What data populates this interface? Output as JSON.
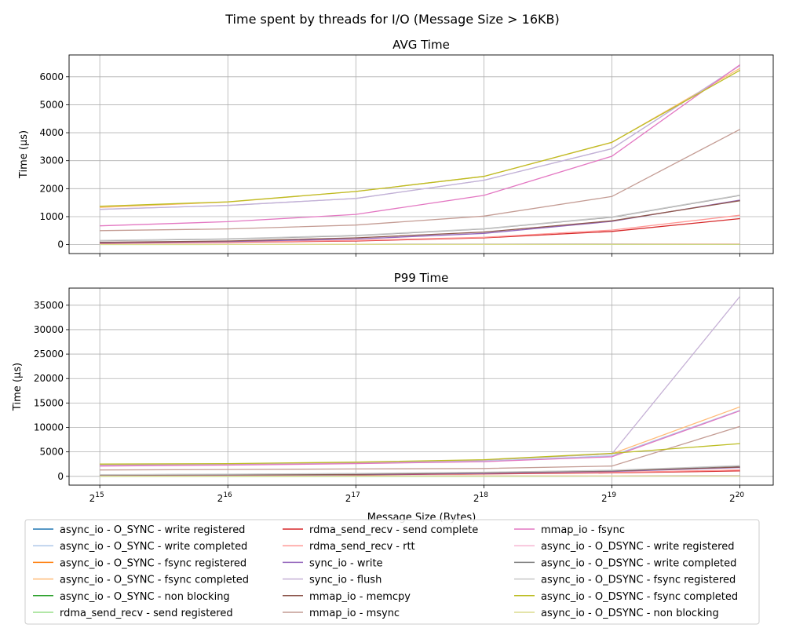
{
  "suptitle": "Time spent by threads for I/O (Message Size > 16KB)",
  "xlabel": "Message Size (Bytes)",
  "x_ticks": [
    "15",
    "16",
    "17",
    "18",
    "19",
    "20"
  ],
  "legend_title": "",
  "chart_data": [
    {
      "type": "line",
      "title": "AVG Time",
      "ylabel": "Time (µs)",
      "x": [
        32768,
        65536,
        131072,
        262144,
        524288,
        1048576
      ],
      "xscale": "log2",
      "ylim": [
        -320,
        6780
      ],
      "yticks": [
        0,
        1000,
        2000,
        3000,
        4000,
        5000,
        6000
      ],
      "grid": true,
      "series": [
        {
          "name": "async_io - O_SYNC - write registered",
          "color": "#1f77b4",
          "values": [
            10,
            12,
            15,
            18,
            22,
            28
          ]
        },
        {
          "name": "async_io - O_SYNC - write completed",
          "color": "#aec7e8",
          "values": [
            1260,
            1400,
            1650,
            2300,
            3430,
            6400
          ]
        },
        {
          "name": "async_io - O_SYNC - fsync registered",
          "color": "#ff7f0e",
          "values": [
            8,
            9,
            10,
            12,
            14,
            18
          ]
        },
        {
          "name": "async_io - O_SYNC - fsync completed",
          "color": "#ffbb78",
          "values": [
            1330,
            1520,
            1900,
            2440,
            3650,
            6300
          ]
        },
        {
          "name": "async_io - O_SYNC - non blocking",
          "color": "#2ca02c",
          "values": [
            5,
            6,
            7,
            8,
            10,
            12
          ]
        },
        {
          "name": "rdma_send_recv - send registered",
          "color": "#98df8a",
          "values": [
            4,
            5,
            6,
            8,
            12,
            20
          ]
        },
        {
          "name": "rdma_send_recv - send complete",
          "color": "#d62728",
          "values": [
            50,
            80,
            130,
            240,
            470,
            930
          ]
        },
        {
          "name": "rdma_send_recv - rtt",
          "color": "#ff9896",
          "values": [
            60,
            90,
            150,
            260,
            520,
            1050
          ]
        },
        {
          "name": "sync_io - write",
          "color": "#9467bd",
          "values": [
            60,
            110,
            200,
            400,
            830,
            1590
          ]
        },
        {
          "name": "sync_io - flush",
          "color": "#c5b0d5",
          "values": [
            1260,
            1400,
            1650,
            2300,
            3430,
            6400
          ]
        },
        {
          "name": "mmap_io - memcpy",
          "color": "#8c564b",
          "values": [
            80,
            130,
            240,
            450,
            850,
            1570
          ]
        },
        {
          "name": "mmap_io - msync",
          "color": "#c49c94",
          "values": [
            500,
            560,
            700,
            1020,
            1720,
            4120
          ]
        },
        {
          "name": "mmap_io - fsync",
          "color": "#e377c2",
          "values": [
            670,
            820,
            1080,
            1760,
            3160,
            6430
          ]
        },
        {
          "name": "async_io - O_DSYNC - write registered",
          "color": "#f7b6d2",
          "values": [
            10,
            12,
            15,
            18,
            22,
            28
          ]
        },
        {
          "name": "async_io - O_DSYNC - write completed",
          "color": "#7f7f7f",
          "values": [
            140,
            200,
            320,
            560,
            980,
            1760
          ]
        },
        {
          "name": "async_io - O_DSYNC - fsync registered",
          "color": "#c7c7c7",
          "values": [
            150,
            210,
            330,
            570,
            990,
            1770
          ]
        },
        {
          "name": "async_io - O_DSYNC - fsync completed",
          "color": "#bcbd22",
          "values": [
            1370,
            1530,
            1900,
            2440,
            3660,
            6230
          ]
        },
        {
          "name": "async_io - O_DSYNC - non blocking",
          "color": "#dbdb8d",
          "values": [
            5,
            6,
            7,
            8,
            10,
            12
          ]
        }
      ]
    },
    {
      "type": "line",
      "title": "P99 Time",
      "ylabel": "Time (µs)",
      "x": [
        32768,
        65536,
        131072,
        262144,
        524288,
        1048576
      ],
      "xscale": "log2",
      "ylim": [
        -1800,
        38500
      ],
      "yticks": [
        0,
        5000,
        10000,
        15000,
        20000,
        25000,
        30000,
        35000
      ],
      "grid": true,
      "series": [
        {
          "name": "async_io - O_SYNC - write registered",
          "color": "#1f77b4",
          "values": [
            50,
            60,
            70,
            80,
            100,
            120
          ]
        },
        {
          "name": "async_io - O_SYNC - write completed",
          "color": "#aec7e8",
          "values": [
            2200,
            2400,
            2700,
            3100,
            4200,
            13500
          ]
        },
        {
          "name": "async_io - O_SYNC - fsync registered",
          "color": "#ff7f0e",
          "values": [
            40,
            50,
            60,
            70,
            90,
            110
          ]
        },
        {
          "name": "async_io - O_SYNC - fsync completed",
          "color": "#ffbb78",
          "values": [
            2300,
            2500,
            2800,
            3300,
            4600,
            14200
          ]
        },
        {
          "name": "async_io - O_SYNC - non blocking",
          "color": "#2ca02c",
          "values": [
            30,
            35,
            40,
            45,
            55,
            70
          ]
        },
        {
          "name": "rdma_send_recv - send registered",
          "color": "#98df8a",
          "values": [
            20,
            25,
            30,
            40,
            60,
            90
          ]
        },
        {
          "name": "rdma_send_recv - send complete",
          "color": "#d62728",
          "values": [
            150,
            200,
            300,
            500,
            700,
            1100
          ]
        },
        {
          "name": "rdma_send_recv - rtt",
          "color": "#ff9896",
          "values": [
            200,
            260,
            380,
            600,
            800,
            1300
          ]
        },
        {
          "name": "sync_io - write",
          "color": "#9467bd",
          "values": [
            150,
            220,
            350,
            600,
            1000,
            1800
          ]
        },
        {
          "name": "sync_io - flush",
          "color": "#c5b0d5",
          "values": [
            2300,
            2500,
            2800,
            3300,
            4600,
            36800
          ]
        },
        {
          "name": "mmap_io - memcpy",
          "color": "#8c564b",
          "values": [
            200,
            280,
            420,
            700,
            1100,
            1900
          ]
        },
        {
          "name": "mmap_io - msync",
          "color": "#c49c94",
          "values": [
            1300,
            1400,
            1500,
            1600,
            2100,
            10200
          ]
        },
        {
          "name": "mmap_io - fsync",
          "color": "#e377c2",
          "values": [
            2100,
            2300,
            2600,
            3000,
            4000,
            13400
          ]
        },
        {
          "name": "async_io - O_DSYNC - write registered",
          "color": "#f7b6d2",
          "values": [
            50,
            60,
            70,
            80,
            100,
            120
          ]
        },
        {
          "name": "async_io - O_DSYNC - write completed",
          "color": "#7f7f7f",
          "values": [
            300,
            400,
            550,
            800,
            1200,
            2100
          ]
        },
        {
          "name": "async_io - O_DSYNC - fsync registered",
          "color": "#c7c7c7",
          "values": [
            350,
            450,
            600,
            850,
            1250,
            2200
          ]
        },
        {
          "name": "async_io - O_DSYNC - fsync completed",
          "color": "#bcbd22",
          "values": [
            2500,
            2600,
            2900,
            3400,
            4700,
            6700
          ]
        },
        {
          "name": "async_io - O_DSYNC - non blocking",
          "color": "#dbdb8d",
          "values": [
            30,
            35,
            40,
            45,
            55,
            70
          ]
        }
      ]
    }
  ]
}
